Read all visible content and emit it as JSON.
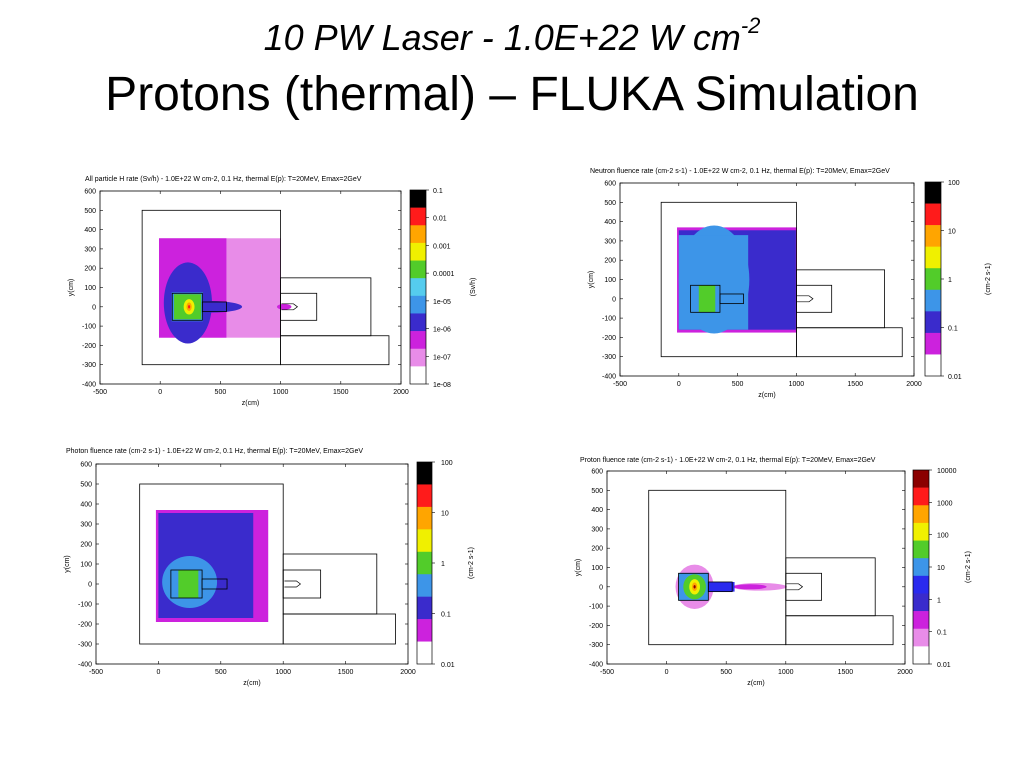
{
  "slide": {
    "title_main": "10 PW Laser - 1.0E+22 W cm",
    "title_sup": "-2",
    "subtitle": "Protons (thermal) – FLUKA Simulation"
  },
  "colors": {
    "scale": [
      "#ffffff",
      "#e88ce8",
      "#cc22dd",
      "#3a2bcc",
      "#3d95e8",
      "#55ccee",
      "#52cc2a",
      "#f0f000",
      "#ffa500",
      "#ff1b1b",
      "#000000"
    ]
  },
  "chart_data": [
    {
      "id": "h-rate",
      "type": "heatmap",
      "title": "All particle H rate (Sv/h) - 1.0E+22 W cm-2, 0.1 Hz, thermal E(p): T=20MeV, Emax=2GeV",
      "xlabel": "z(cm)",
      "ylabel": "y(cm)",
      "colorbar_label": "(Sv/h)",
      "xlim": [
        -500,
        2000
      ],
      "ylim": [
        -400,
        600
      ],
      "x_ticks": [
        -500,
        0,
        500,
        1000,
        1500,
        2000
      ],
      "y_ticks": [
        -400,
        -300,
        -200,
        -100,
        0,
        100,
        200,
        300,
        400,
        500,
        600
      ],
      "colorbar_labels": [
        "0.1",
        "0.01",
        "0.001",
        "0.0001",
        "1e-05",
        "1e-06",
        "1e-07",
        "1e-08"
      ],
      "colorbar_colors": [
        "#000000",
        "#ff1b1b",
        "#ffa500",
        "#f0f000",
        "#52cc2a",
        "#55ccee",
        "#3d95e8",
        "#3a2bcc",
        "#cc22dd",
        "#e88ce8",
        "#ffffff"
      ],
      "geometry": [
        {
          "z": [
            -150,
            1000
          ],
          "y": [
            -300,
            500
          ]
        },
        {
          "z": [
            1000,
            1750
          ],
          "y": [
            -150,
            150
          ]
        },
        {
          "z": [
            1000,
            1900
          ],
          "y": [
            -300,
            -150
          ]
        },
        {
          "z": [
            100,
            350
          ],
          "y": [
            -70,
            70
          ]
        },
        {
          "z": [
            350,
            550
          ],
          "y": [
            -25,
            25
          ]
        },
        {
          "z": [
            1000,
            1300
          ],
          "y": [
            -70,
            70
          ]
        }
      ],
      "regions": [
        {
          "shape": "rect",
          "z": [
            -10,
            1000
          ],
          "y": [
            -160,
            355
          ],
          "color": "#e88ce8"
        },
        {
          "shape": "rect",
          "z": [
            -10,
            550
          ],
          "y": [
            -160,
            355
          ],
          "color": "#cc22dd"
        },
        {
          "shape": "ellipse",
          "cz": 230,
          "cy": 20,
          "rz": 200,
          "ry": 210,
          "color": "#3a2bcc"
        },
        {
          "shape": "ellipse",
          "cz": 420,
          "cy": 0,
          "rz": 260,
          "ry": 30,
          "color": "#3a2bcc"
        },
        {
          "shape": "ellipse",
          "cz": 1030,
          "cy": 0,
          "rz": 60,
          "ry": 15,
          "color": "#cc22dd"
        },
        {
          "shape": "rect",
          "z": [
            95,
            355
          ],
          "y": [
            -75,
            75
          ],
          "color": "#3d95e8"
        },
        {
          "shape": "rect",
          "z": [
            115,
            340
          ],
          "y": [
            -65,
            65
          ],
          "color": "#52cc2a"
        },
        {
          "shape": "ellipse",
          "cz": 240,
          "cy": 0,
          "rz": 45,
          "ry": 40,
          "color": "#f0f000"
        },
        {
          "shape": "ellipse",
          "cz": 240,
          "cy": 0,
          "rz": 22,
          "ry": 22,
          "color": "#ffa500"
        },
        {
          "shape": "ellipse",
          "cz": 240,
          "cy": 0,
          "rz": 9,
          "ry": 9,
          "color": "#ff1b1b"
        }
      ]
    },
    {
      "id": "neutron-fluence",
      "type": "heatmap",
      "title": "Neutron fluence rate (cm-2 s-1) - 1.0E+22 W cm-2, 0.1 Hz, thermal E(p): T=20MeV, Emax=2GeV",
      "xlabel": "z(cm)",
      "ylabel": "y(cm)",
      "colorbar_label": "(cm-2 s-1)",
      "xlim": [
        -500,
        2000
      ],
      "ylim": [
        -400,
        600
      ],
      "x_ticks": [
        -500,
        0,
        500,
        1000,
        1500,
        2000
      ],
      "y_ticks": [
        -400,
        -300,
        -200,
        -100,
        0,
        100,
        200,
        300,
        400,
        500,
        600
      ],
      "colorbar_labels": [
        "100",
        "10",
        "1",
        "0.1",
        "0.01"
      ],
      "colorbar_colors": [
        "#000000",
        "#ff1b1b",
        "#ffa500",
        "#f0f000",
        "#52cc2a",
        "#3d95e8",
        "#3a2bcc",
        "#cc22dd",
        "#ffffff"
      ],
      "geometry": [
        {
          "z": [
            -150,
            1000
          ],
          "y": [
            -300,
            500
          ]
        },
        {
          "z": [
            1000,
            1750
          ],
          "y": [
            -150,
            150
          ]
        },
        {
          "z": [
            1000,
            1900
          ],
          "y": [
            -300,
            -150
          ]
        },
        {
          "z": [
            100,
            350
          ],
          "y": [
            -70,
            70
          ]
        },
        {
          "z": [
            350,
            550
          ],
          "y": [
            -25,
            25
          ]
        },
        {
          "z": [
            1000,
            1300
          ],
          "y": [
            -70,
            70
          ]
        }
      ],
      "regions": [
        {
          "shape": "rect",
          "z": [
            -15,
            1005
          ],
          "y": [
            -175,
            370
          ],
          "color": "#cc22dd"
        },
        {
          "shape": "rect",
          "z": [
            0,
            995
          ],
          "y": [
            -160,
            355
          ],
          "color": "#3a2bcc"
        },
        {
          "shape": "ellipse",
          "cz": 300,
          "cy": 100,
          "rz": 300,
          "ry": 280,
          "color": "#3d95e8"
        },
        {
          "shape": "rect",
          "z": [
            0,
            590
          ],
          "y": [
            -160,
            330
          ],
          "color": "#3d95e8"
        },
        {
          "shape": "rect",
          "z": [
            170,
            310
          ],
          "y": [
            -70,
            70
          ],
          "color": "#52cc2a"
        }
      ]
    },
    {
      "id": "photon-fluence",
      "type": "heatmap",
      "title": "Photon fluence rate (cm-2 s-1) - 1.0E+22 W cm-2, 0.1 Hz, thermal E(p): T=20MeV, Emax=2GeV",
      "xlabel": "z(cm)",
      "ylabel": "y(cm)",
      "colorbar_label": "(cm-2 s-1)",
      "xlim": [
        -500,
        2000
      ],
      "ylim": [
        -400,
        600
      ],
      "x_ticks": [
        -500,
        0,
        500,
        1000,
        1500,
        2000
      ],
      "y_ticks": [
        -400,
        -300,
        -200,
        -100,
        0,
        100,
        200,
        300,
        400,
        500,
        600
      ],
      "colorbar_labels": [
        "100",
        "10",
        "1",
        "0.1",
        "0.01"
      ],
      "colorbar_colors": [
        "#000000",
        "#ff1b1b",
        "#ffa500",
        "#f0f000",
        "#52cc2a",
        "#3d95e8",
        "#3a2bcc",
        "#cc22dd",
        "#ffffff"
      ],
      "geometry": [
        {
          "z": [
            -150,
            1000
          ],
          "y": [
            -300,
            500
          ]
        },
        {
          "z": [
            1000,
            1750
          ],
          "y": [
            -150,
            150
          ]
        },
        {
          "z": [
            1000,
            1900
          ],
          "y": [
            -300,
            -150
          ]
        },
        {
          "z": [
            100,
            350
          ],
          "y": [
            -70,
            70
          ]
        },
        {
          "z": [
            350,
            550
          ],
          "y": [
            -25,
            25
          ]
        },
        {
          "z": [
            1000,
            1300
          ],
          "y": [
            -70,
            70
          ]
        }
      ],
      "regions": [
        {
          "shape": "rect",
          "z": [
            -20,
            880
          ],
          "y": [
            -190,
            370
          ],
          "color": "#cc22dd"
        },
        {
          "shape": "rect",
          "z": [
            0,
            760
          ],
          "y": [
            -170,
            355
          ],
          "color": "#3a2bcc"
        },
        {
          "shape": "ellipse",
          "cz": 250,
          "cy": 10,
          "rz": 220,
          "ry": 130,
          "color": "#3d95e8"
        },
        {
          "shape": "rect",
          "z": [
            160,
            320
          ],
          "y": [
            -70,
            70
          ],
          "color": "#52cc2a"
        }
      ]
    },
    {
      "id": "proton-fluence",
      "type": "heatmap",
      "title": "Proton fluence rate (cm-2 s-1) - 1.0E+22 W cm-2, 0.1 Hz, thermal E(p): T=20MeV, Emax=2GeV",
      "xlabel": "z(cm)",
      "ylabel": "y(cm)",
      "colorbar_label": "(cm-2 s-1)",
      "xlim": [
        -500,
        2000
      ],
      "ylim": [
        -400,
        600
      ],
      "x_ticks": [
        -500,
        0,
        500,
        1000,
        1500,
        2000
      ],
      "y_ticks": [
        -400,
        -300,
        -200,
        -100,
        0,
        100,
        200,
        300,
        400,
        500,
        600
      ],
      "colorbar_labels": [
        "10000",
        "1000",
        "100",
        "10",
        "1",
        "0.1",
        "0.01"
      ],
      "colorbar_colors": [
        "#8b0000",
        "#ff1b1b",
        "#ffa500",
        "#f0f000",
        "#52cc2a",
        "#3d95e8",
        "#2a2aee",
        "#3a2bcc",
        "#cc22dd",
        "#e88ce8",
        "#ffffff"
      ],
      "geometry": [
        {
          "z": [
            -150,
            1000
          ],
          "y": [
            -300,
            500
          ]
        },
        {
          "z": [
            1000,
            1750
          ],
          "y": [
            -150,
            150
          ]
        },
        {
          "z": [
            1000,
            1900
          ],
          "y": [
            -300,
            -150
          ]
        },
        {
          "z": [
            100,
            350
          ],
          "y": [
            -70,
            70
          ]
        },
        {
          "z": [
            350,
            550
          ],
          "y": [
            -25,
            25
          ]
        },
        {
          "z": [
            1000,
            1300
          ],
          "y": [
            -70,
            70
          ]
        }
      ],
      "regions": [
        {
          "shape": "ellipse",
          "cz": 235,
          "cy": 0,
          "rz": 160,
          "ry": 115,
          "color": "#e88ce8"
        },
        {
          "shape": "ellipse",
          "cz": 780,
          "cy": 0,
          "rz": 230,
          "ry": 20,
          "color": "#e88ce8"
        },
        {
          "shape": "ellipse",
          "cz": 700,
          "cy": 0,
          "rz": 140,
          "ry": 13,
          "color": "#cc22dd"
        },
        {
          "shape": "rect",
          "z": [
            350,
            570
          ],
          "y": [
            -25,
            25
          ],
          "color": "#2a2aee"
        },
        {
          "shape": "rect",
          "z": [
            100,
            350
          ],
          "y": [
            -72,
            72
          ],
          "color": "#3d95e8"
        },
        {
          "shape": "ellipse",
          "cz": 235,
          "cy": 0,
          "rz": 95,
          "ry": 65,
          "color": "#52cc2a"
        },
        {
          "shape": "ellipse",
          "cz": 235,
          "cy": 0,
          "rz": 45,
          "ry": 40,
          "color": "#f0f000"
        },
        {
          "shape": "ellipse",
          "cz": 235,
          "cy": 0,
          "rz": 22,
          "ry": 22,
          "color": "#ffa500"
        },
        {
          "shape": "ellipse",
          "cz": 235,
          "cy": 0,
          "rz": 9,
          "ry": 9,
          "color": "#8b0000"
        }
      ]
    }
  ]
}
